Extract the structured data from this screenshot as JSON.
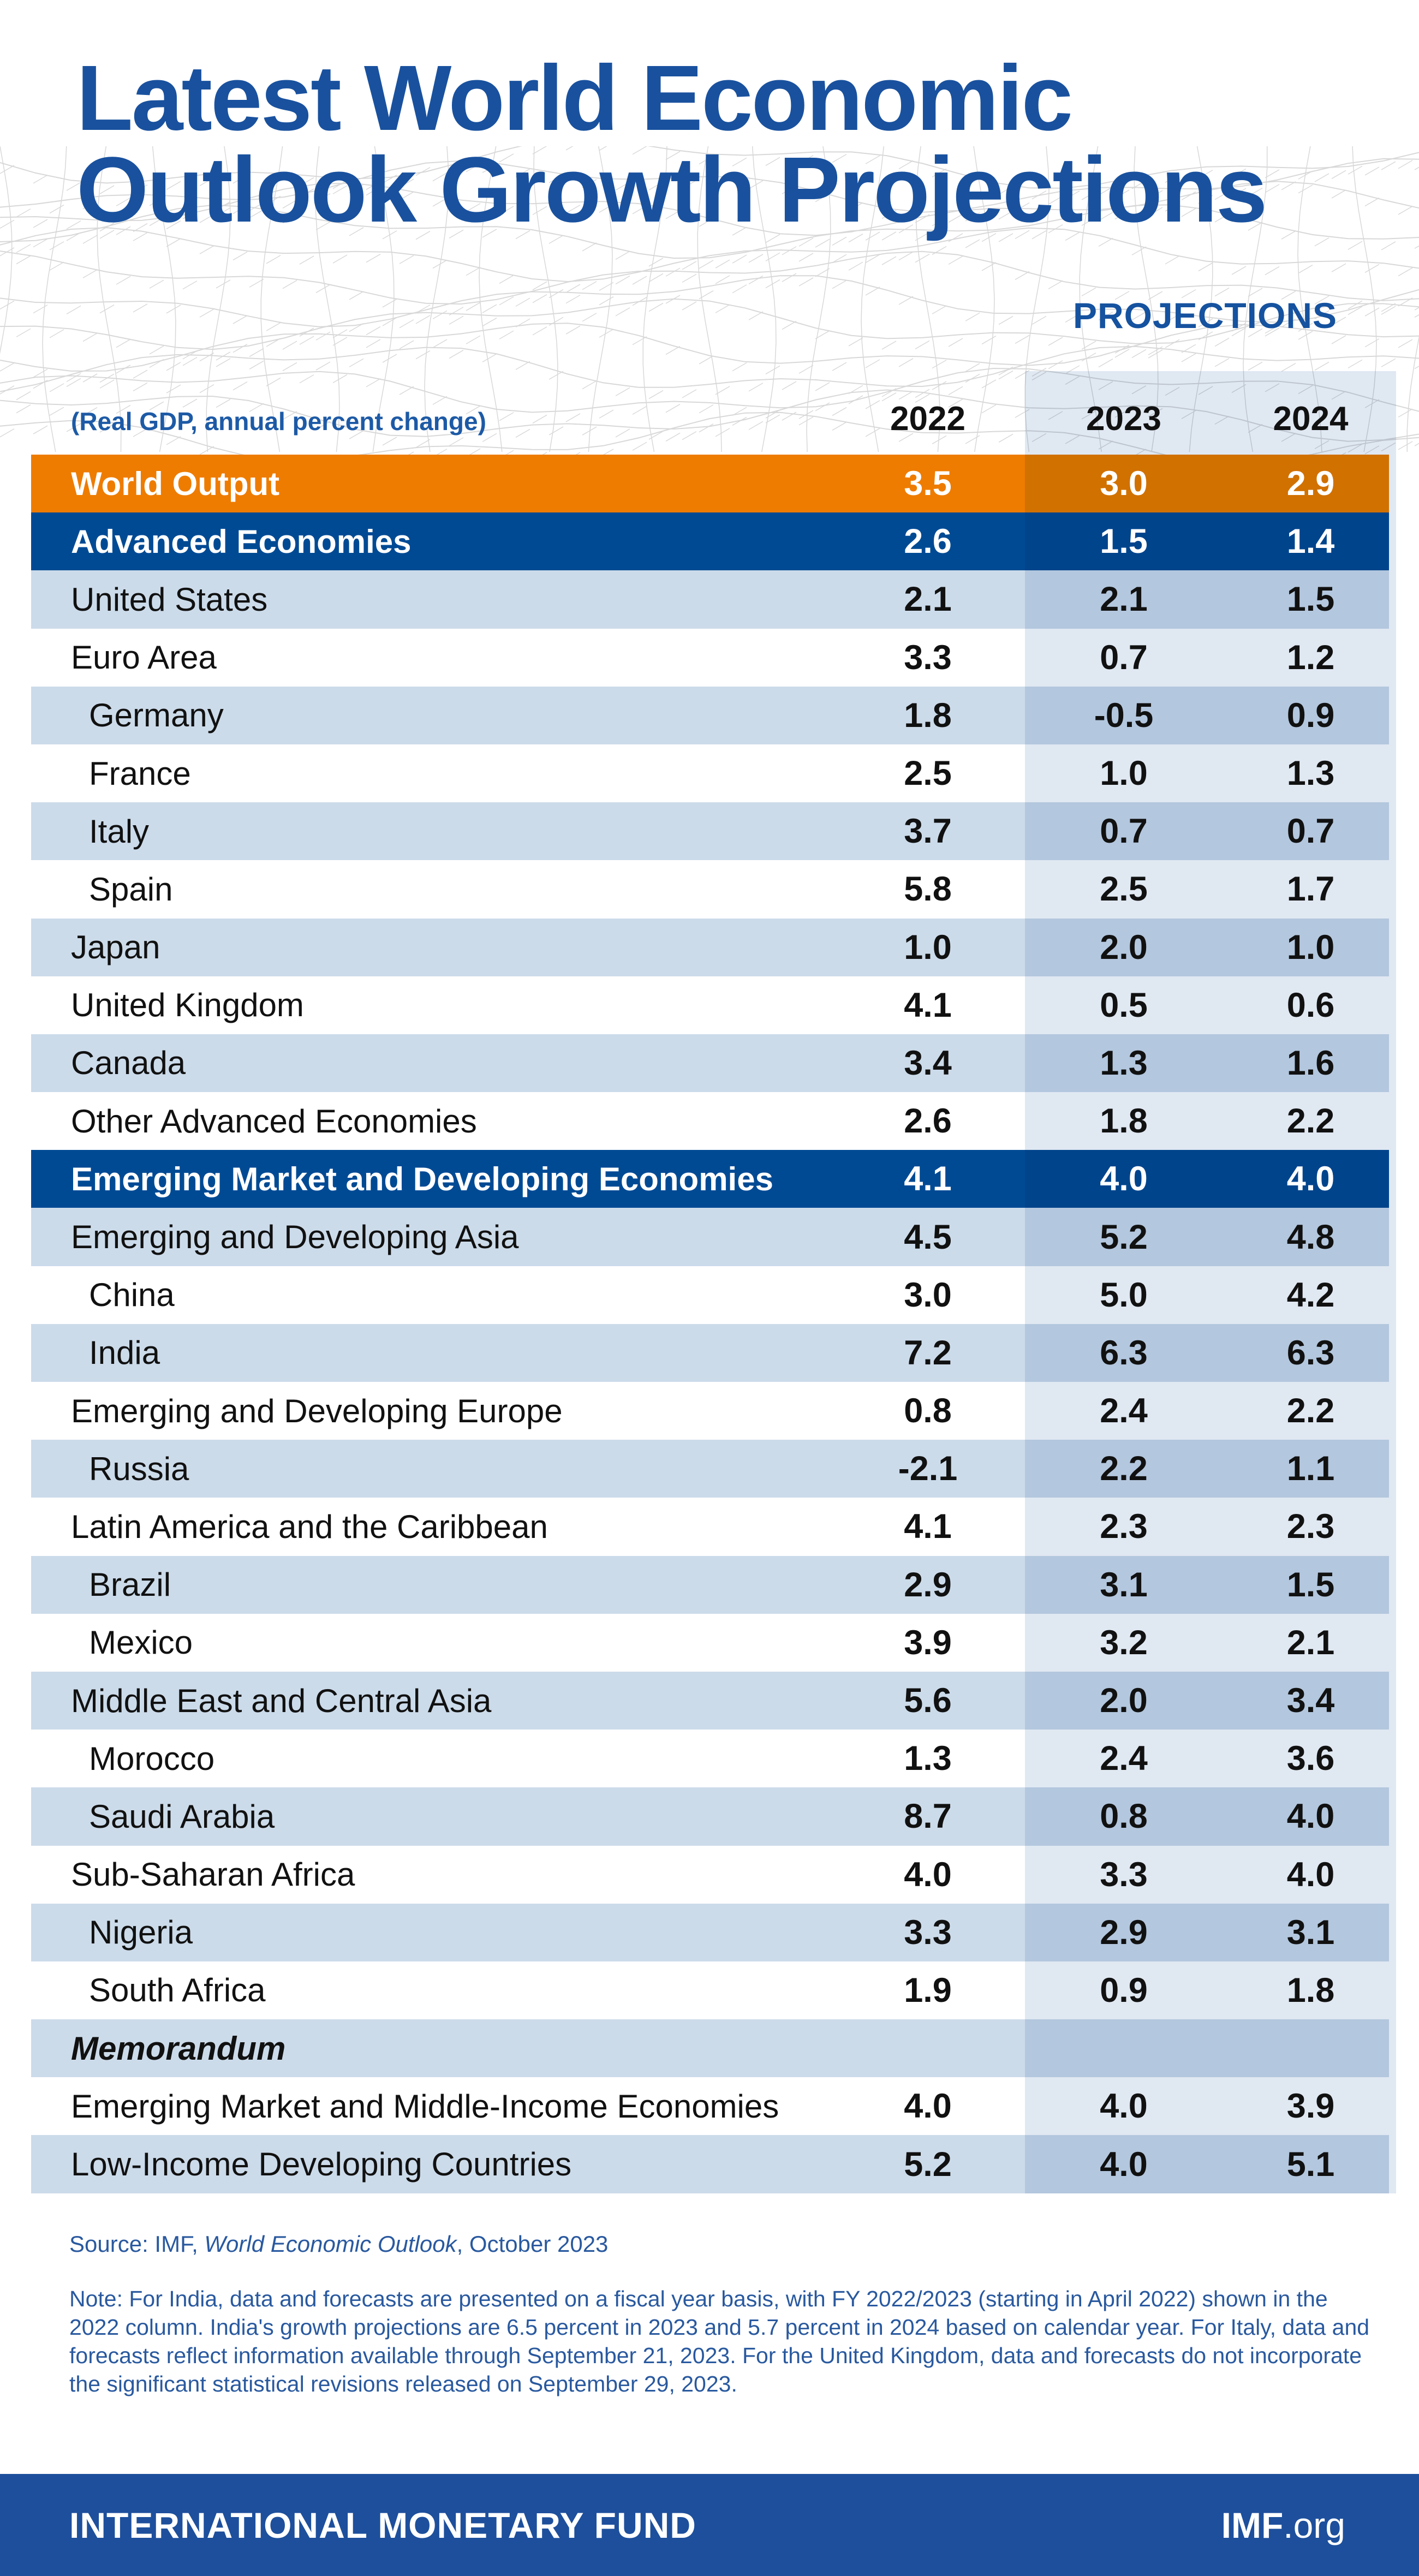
{
  "title": {
    "line1": "Latest World Economic",
    "line2": "Outlook Growth Projections"
  },
  "header": {
    "projections_label": "PROJECTIONS",
    "subtitle": "(Real GDP, annual percent change)",
    "years": [
      "2022",
      "2023",
      "2024"
    ]
  },
  "chart_data": {
    "type": "table",
    "title": "Latest World Economic Outlook Growth Projections",
    "unit": "Real GDP, annual percent change",
    "columns": [
      "2022",
      "2023",
      "2024"
    ],
    "rows": [
      {
        "label": "World Output",
        "style": "orange",
        "bold": true,
        "italic": false,
        "indent": false,
        "values": [
          "3.5",
          "3.0",
          "2.9"
        ]
      },
      {
        "label": "Advanced Economies",
        "style": "navy",
        "bold": true,
        "italic": false,
        "indent": false,
        "values": [
          "2.6",
          "1.5",
          "1.4"
        ]
      },
      {
        "label": "United States",
        "style": "light",
        "bold": false,
        "italic": false,
        "indent": false,
        "values": [
          "2.1",
          "2.1",
          "1.5"
        ]
      },
      {
        "label": "Euro Area",
        "style": "white",
        "bold": false,
        "italic": false,
        "indent": false,
        "values": [
          "3.3",
          "0.7",
          "1.2"
        ]
      },
      {
        "label": "Germany",
        "style": "light",
        "bold": false,
        "italic": false,
        "indent": true,
        "values": [
          "1.8",
          "-0.5",
          "0.9"
        ]
      },
      {
        "label": "France",
        "style": "white",
        "bold": false,
        "italic": false,
        "indent": true,
        "values": [
          "2.5",
          "1.0",
          "1.3"
        ]
      },
      {
        "label": "Italy",
        "style": "light",
        "bold": false,
        "italic": false,
        "indent": true,
        "values": [
          "3.7",
          "0.7",
          "0.7"
        ]
      },
      {
        "label": "Spain",
        "style": "white",
        "bold": false,
        "italic": false,
        "indent": true,
        "values": [
          "5.8",
          "2.5",
          "1.7"
        ]
      },
      {
        "label": "Japan",
        "style": "light",
        "bold": false,
        "italic": false,
        "indent": false,
        "values": [
          "1.0",
          "2.0",
          "1.0"
        ]
      },
      {
        "label": "United Kingdom",
        "style": "white",
        "bold": false,
        "italic": false,
        "indent": false,
        "values": [
          "4.1",
          "0.5",
          "0.6"
        ]
      },
      {
        "label": "Canada",
        "style": "light",
        "bold": false,
        "italic": false,
        "indent": false,
        "values": [
          "3.4",
          "1.3",
          "1.6"
        ]
      },
      {
        "label": "Other Advanced Economies",
        "style": "white",
        "bold": false,
        "italic": false,
        "indent": false,
        "values": [
          "2.6",
          "1.8",
          "2.2"
        ]
      },
      {
        "label": "Emerging Market and Developing Economies",
        "style": "navy",
        "bold": true,
        "italic": false,
        "indent": false,
        "values": [
          "4.1",
          "4.0",
          "4.0"
        ]
      },
      {
        "label": "Emerging and Developing Asia",
        "style": "light",
        "bold": false,
        "italic": false,
        "indent": false,
        "values": [
          "4.5",
          "5.2",
          "4.8"
        ]
      },
      {
        "label": "China",
        "style": "white",
        "bold": false,
        "italic": false,
        "indent": true,
        "values": [
          "3.0",
          "5.0",
          "4.2"
        ]
      },
      {
        "label": "India",
        "style": "light",
        "bold": false,
        "italic": false,
        "indent": true,
        "values": [
          "7.2",
          "6.3",
          "6.3"
        ]
      },
      {
        "label": "Emerging and Developing Europe",
        "style": "white",
        "bold": false,
        "italic": false,
        "indent": false,
        "values": [
          "0.8",
          "2.4",
          "2.2"
        ]
      },
      {
        "label": "Russia",
        "style": "light",
        "bold": false,
        "italic": false,
        "indent": true,
        "values": [
          "-2.1",
          "2.2",
          "1.1"
        ]
      },
      {
        "label": "Latin America and the Caribbean",
        "style": "white",
        "bold": false,
        "italic": false,
        "indent": false,
        "values": [
          "4.1",
          "2.3",
          "2.3"
        ]
      },
      {
        "label": "Brazil",
        "style": "light",
        "bold": false,
        "italic": false,
        "indent": true,
        "values": [
          "2.9",
          "3.1",
          "1.5"
        ]
      },
      {
        "label": "Mexico",
        "style": "white",
        "bold": false,
        "italic": false,
        "indent": true,
        "values": [
          "3.9",
          "3.2",
          "2.1"
        ]
      },
      {
        "label": "Middle East and Central Asia",
        "style": "light",
        "bold": false,
        "italic": false,
        "indent": false,
        "values": [
          "5.6",
          "2.0",
          "3.4"
        ]
      },
      {
        "label": "Morocco",
        "style": "white",
        "bold": false,
        "italic": false,
        "indent": true,
        "values": [
          "1.3",
          "2.4",
          "3.6"
        ]
      },
      {
        "label": "Saudi Arabia",
        "style": "light",
        "bold": false,
        "italic": false,
        "indent": true,
        "values": [
          "8.7",
          "0.8",
          "4.0"
        ]
      },
      {
        "label": "Sub-Saharan Africa",
        "style": "white",
        "bold": false,
        "italic": false,
        "indent": false,
        "values": [
          "4.0",
          "3.3",
          "4.0"
        ]
      },
      {
        "label": "Nigeria",
        "style": "light",
        "bold": false,
        "italic": false,
        "indent": true,
        "values": [
          "3.3",
          "2.9",
          "3.1"
        ]
      },
      {
        "label": "South Africa",
        "style": "white",
        "bold": false,
        "italic": false,
        "indent": true,
        "values": [
          "1.9",
          "0.9",
          "1.8"
        ]
      },
      {
        "label": "Memorandum",
        "style": "light",
        "bold": true,
        "italic": true,
        "indent": false,
        "values": []
      },
      {
        "label": "Emerging Market and Middle-Income Economies",
        "style": "white",
        "bold": false,
        "italic": false,
        "indent": false,
        "values": [
          "4.0",
          "4.0",
          "3.9"
        ]
      },
      {
        "label": "Low-Income Developing Countries",
        "style": "light",
        "bold": false,
        "italic": false,
        "indent": false,
        "values": [
          "5.2",
          "4.0",
          "5.1"
        ]
      }
    ]
  },
  "footer": {
    "source_prefix": "Source: IMF, ",
    "source_italic": "World Economic Outlook",
    "source_suffix": ", October 2023",
    "note": "Note: For India, data and forecasts are presented on a fiscal year basis, with FY 2022/2023 (starting in April 2022) shown in the 2022 column. India's growth projections are 6.5 percent in 2023 and 5.7 percent in 2024 based on calendar year. For Italy, data and forecasts reflect information available through September 21, 2023. For the United Kingdom, data and forecasts do not incorporate the significant statistical revisions released on September 29, 2023.",
    "bar": {
      "org": "INTERNATIONAL MONETARY FUND",
      "site_bold": "IMF",
      "site_suffix": ".org"
    }
  },
  "colors": {
    "accent_orange": "#ee7c00",
    "brand_navy": "#004a94",
    "row_light_blue": "#ccdbea",
    "projection_band": "#e0e8f2",
    "title_blue": "#19519e",
    "note_blue": "#29599f",
    "footer_bar": "#1d4f9c",
    "mesh_grey": "#d8d8d8"
  }
}
